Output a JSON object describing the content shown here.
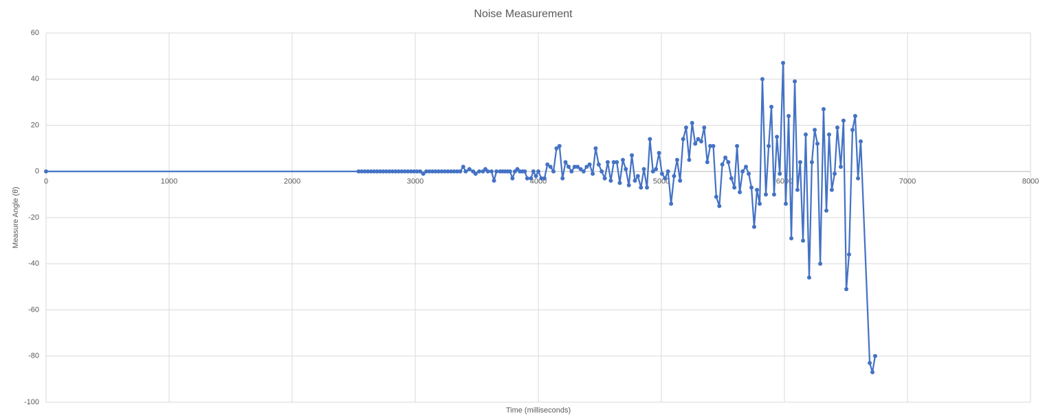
{
  "chart_data": {
    "type": "line",
    "title": "Noise Measurement",
    "x_label": "Time (milliseconds)",
    "y_label": "Measure Angle (θ)",
    "color": "#4472c4",
    "grid": true,
    "xlim": [
      0,
      8000
    ],
    "xticks": [
      0,
      1000,
      2000,
      3000,
      4000,
      5000,
      6000,
      7000,
      8000
    ],
    "ylim": [
      -100,
      60
    ],
    "yticks": [
      -100,
      -80,
      -60,
      -40,
      -20,
      0,
      20,
      40,
      60
    ],
    "x": [
      0,
      2540,
      2565,
      2590,
      2615,
      2640,
      2665,
      2690,
      2715,
      2740,
      2765,
      2790,
      2815,
      2840,
      2865,
      2890,
      2915,
      2940,
      2965,
      2990,
      3015,
      3040,
      3065,
      3090,
      3115,
      3140,
      3165,
      3190,
      3215,
      3240,
      3265,
      3290,
      3315,
      3340,
      3365,
      3390,
      3410,
      3440,
      3470,
      3490,
      3520,
      3550,
      3570,
      3590,
      3620,
      3640,
      3660,
      3690,
      3710,
      3730,
      3750,
      3770,
      3790,
      3810,
      3830,
      3850,
      3870,
      3890,
      3910,
      3940,
      3960,
      3980,
      4000,
      4025,
      4050,
      4074,
      4099,
      4123,
      4148,
      4172,
      4197,
      4221,
      4246,
      4270,
      4295,
      4319,
      4344,
      4368,
      4393,
      4417,
      4442,
      4466,
      4491,
      4515,
      4540,
      4564,
      4589,
      4613,
      4638,
      4662,
      4687,
      4711,
      4736,
      4760,
      4785,
      4809,
      4834,
      4858,
      4883,
      4907,
      4932,
      4956,
      4981,
      5005,
      5030,
      5054,
      5079,
      5103,
      5128,
      5152,
      5177,
      5201,
      5226,
      5250,
      5275,
      5299,
      5324,
      5348,
      5373,
      5397,
      5422,
      5446,
      5471,
      5495,
      5520,
      5544,
      5569,
      5593,
      5615,
      5637,
      5660,
      5687,
      5710,
      5732,
      5754,
      5777,
      5799,
      5821,
      5849,
      5872,
      5894,
      5916,
      5939,
      5962,
      5989,
      6011,
      6034,
      6056,
      6084,
      6106,
      6128,
      6151,
      6173,
      6201,
      6223,
      6246,
      6268,
      6291,
      6318,
      6341,
      6363,
      6385,
      6408,
      6430,
      6458,
      6480,
      6503,
      6525,
      6553,
      6575,
      6598,
      6620,
      6693,
      6715,
      6737
    ],
    "values": [
      0,
      0,
      0,
      0,
      0,
      0,
      0,
      0,
      0,
      0,
      0,
      0,
      0,
      0,
      0,
      0,
      0,
      0,
      0,
      0,
      0,
      0,
      -1,
      0,
      0,
      0,
      0,
      0,
      0,
      0,
      0,
      0,
      0,
      0,
      0,
      2,
      0,
      1,
      0,
      -1,
      0,
      0,
      1,
      0,
      0,
      -4,
      0,
      0,
      0,
      0,
      0,
      0,
      -3,
      0,
      1,
      0,
      0,
      0,
      -3,
      -3,
      0,
      -2,
      0,
      -3,
      -3,
      3,
      2,
      0,
      10,
      11,
      -3,
      4,
      2,
      0,
      2,
      2,
      1,
      0,
      2,
      3,
      -1,
      10,
      3,
      0,
      -3,
      4,
      -4,
      4,
      4,
      -5,
      5,
      1,
      -6,
      7,
      -4,
      -2,
      -7,
      1,
      -7,
      14,
      0,
      1,
      8,
      -1,
      -3,
      0,
      -14,
      -2,
      5,
      -4,
      14,
      19,
      5,
      21,
      12,
      14,
      13,
      19,
      4,
      11,
      11,
      -11,
      -15,
      3,
      6,
      4,
      -3,
      -7,
      11,
      -9,
      0,
      2,
      -1,
      -7,
      -24,
      -8,
      -14,
      40,
      -10,
      11,
      28,
      -10,
      15,
      -1,
      47,
      -14,
      24,
      -29,
      39,
      -8,
      4,
      -30,
      16,
      -46,
      4,
      18,
      12,
      -40,
      27,
      -17,
      16,
      -8,
      -1,
      19,
      2,
      22,
      -51,
      -36,
      18,
      24,
      -3,
      13,
      -83,
      -87,
      -80
    ]
  }
}
